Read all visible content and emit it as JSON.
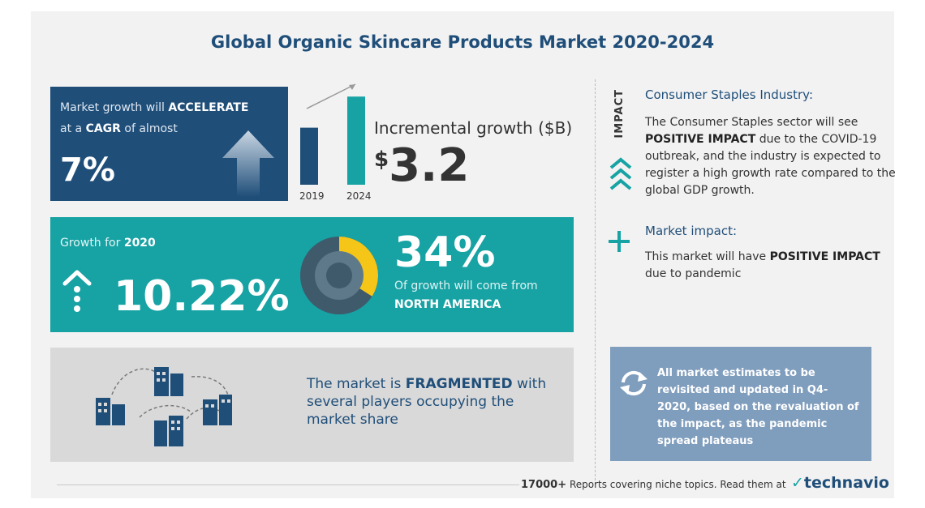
{
  "title": "Global Organic Skincare Products Market 2020-2024",
  "cagr": {
    "line1_prefix": "Market growth will ",
    "line1_bold": "ACCELERATE",
    "line2_prefix": "at a ",
    "line2_bold": "CAGR",
    "line2_suffix": " of almost",
    "value": "7%",
    "icon": "up-arrow-icon"
  },
  "incremental": {
    "bar_labels": [
      "2019",
      "2024"
    ],
    "bar_values": [
      0.55,
      0.85
    ],
    "label": "Incremental growth ($B)",
    "currency": "$",
    "value": "3.2"
  },
  "growth": {
    "label_prefix": "Growth for ",
    "label_year": "2020",
    "value": "10.22%",
    "share_value": "34%",
    "share_fraction": 0.34,
    "share_text": "Of growth will come from",
    "share_region": "NORTH AMERICA",
    "colors": {
      "accent": "#f5c518",
      "donut_dark": "#3f5a6b",
      "donut_mid": "#5e7a8a"
    }
  },
  "fragmented": {
    "prefix": "The market is ",
    "bold": "FRAGMENTED",
    "suffix": " with several players occupying the market share",
    "icon": "buildings-icon"
  },
  "impact_vertical": "IMPACT",
  "consumer_staples": {
    "title": "Consumer Staples Industry:",
    "body_prefix": "The Consumer Staples sector will see ",
    "body_bold": "POSITIVE IMPACT",
    "body_suffix": " due to the COVID-19 outbreak, and the industry is expected to register a high growth rate compared to the global GDP growth."
  },
  "market_impact": {
    "title": "Market impact:",
    "body_prefix": "This market will have ",
    "body_bold": "POSITIVE IMPACT",
    "body_suffix": " due to pandemic"
  },
  "note": {
    "text": "All market estimates to be revisited and updated in Q4-2020, based on the revaluation of the impact, as the pandemic spread plateaus",
    "icon": "refresh-icon"
  },
  "footer": {
    "count": "17000+",
    "text": " Reports covering niche topics. Read them at",
    "brand": "technavio"
  },
  "colors": {
    "navy": "#1f4e79",
    "teal": "#17a2a4",
    "gray_box": "#d9d9d9",
    "note_box": "#7f9dbd"
  }
}
